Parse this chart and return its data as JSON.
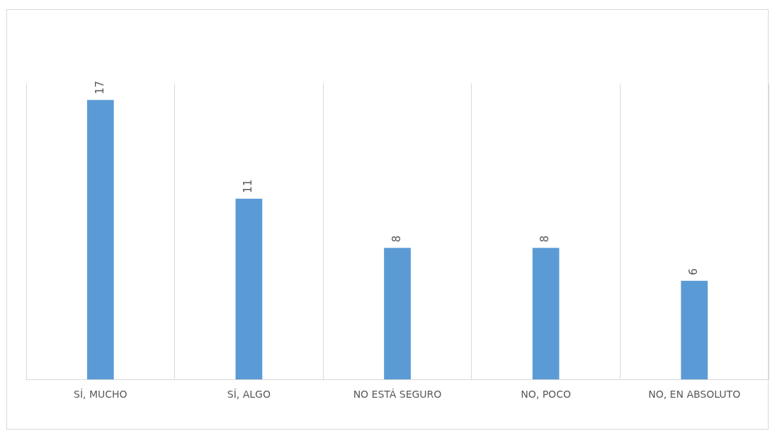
{
  "chart_data": {
    "type": "bar",
    "categories": [
      "SÍ, MUCHO",
      "SÍ, ALGO",
      "NO ESTÁ SEGURO",
      "NO, POCO",
      "NO, EN ABSOLUTO"
    ],
    "values": [
      17,
      11,
      8,
      8,
      6
    ],
    "color": "#5b9bd5",
    "ylim": [
      0,
      18
    ],
    "data_labels": true,
    "grid": "x",
    "legend": false,
    "tick_labels": "x"
  }
}
